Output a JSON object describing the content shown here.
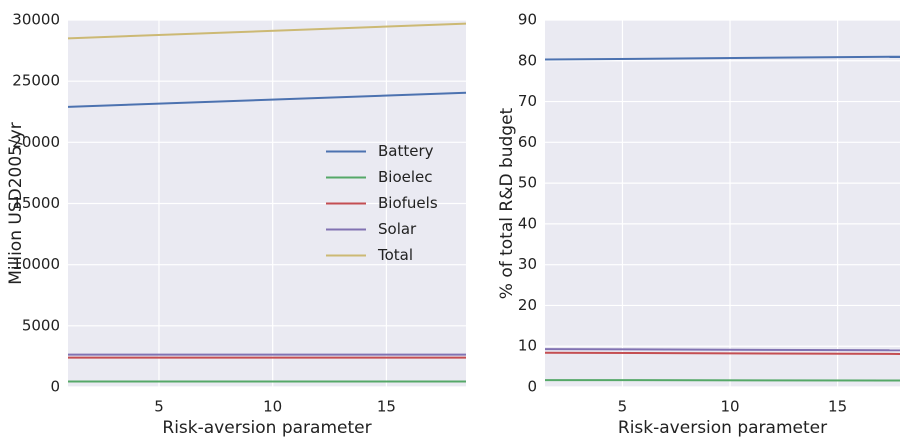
{
  "chart_data": [
    {
      "type": "line",
      "xlabel": "Risk-aversion parameter",
      "ylabel": "Million USD2005/yr",
      "x": [
        1,
        18.5
      ],
      "xlim": [
        1,
        18.5
      ],
      "xticks": [
        5,
        10,
        15
      ],
      "ylim": [
        0,
        30000
      ],
      "yticks": [
        0,
        5000,
        10000,
        15000,
        20000,
        25000,
        30000
      ],
      "grid": true,
      "legend": "center right",
      "series": [
        {
          "name": "Battery",
          "color": "#4c72b0",
          "values": [
            22900,
            24050
          ]
        },
        {
          "name": "Bioelec",
          "color": "#55a868",
          "values": [
            450,
            450
          ]
        },
        {
          "name": "Biofuels",
          "color": "#c44e52",
          "values": [
            2400,
            2400
          ]
        },
        {
          "name": "Solar",
          "color": "#8172b2",
          "values": [
            2650,
            2650
          ]
        },
        {
          "name": "Total",
          "color": "#ccb974",
          "values": [
            28500,
            29700
          ]
        }
      ]
    },
    {
      "type": "line",
      "xlabel": "Risk-aversion parameter",
      "ylabel": "% of total R&D budget",
      "x": [
        1.4,
        17.9
      ],
      "xlim": [
        1.4,
        17.9
      ],
      "xticks": [
        5,
        10,
        15
      ],
      "ylim": [
        0,
        90
      ],
      "yticks": [
        0,
        10,
        20,
        30,
        40,
        50,
        60,
        70,
        80,
        90
      ],
      "grid": true,
      "series": [
        {
          "color": "#4c72b0",
          "values": [
            80.3,
            81.0
          ]
        },
        {
          "color": "#55a868",
          "values": [
            1.7,
            1.6
          ]
        },
        {
          "color": "#c44e52",
          "values": [
            8.4,
            8.1
          ]
        },
        {
          "color": "#8172b2",
          "values": [
            9.3,
            9.0
          ]
        }
      ]
    }
  ]
}
